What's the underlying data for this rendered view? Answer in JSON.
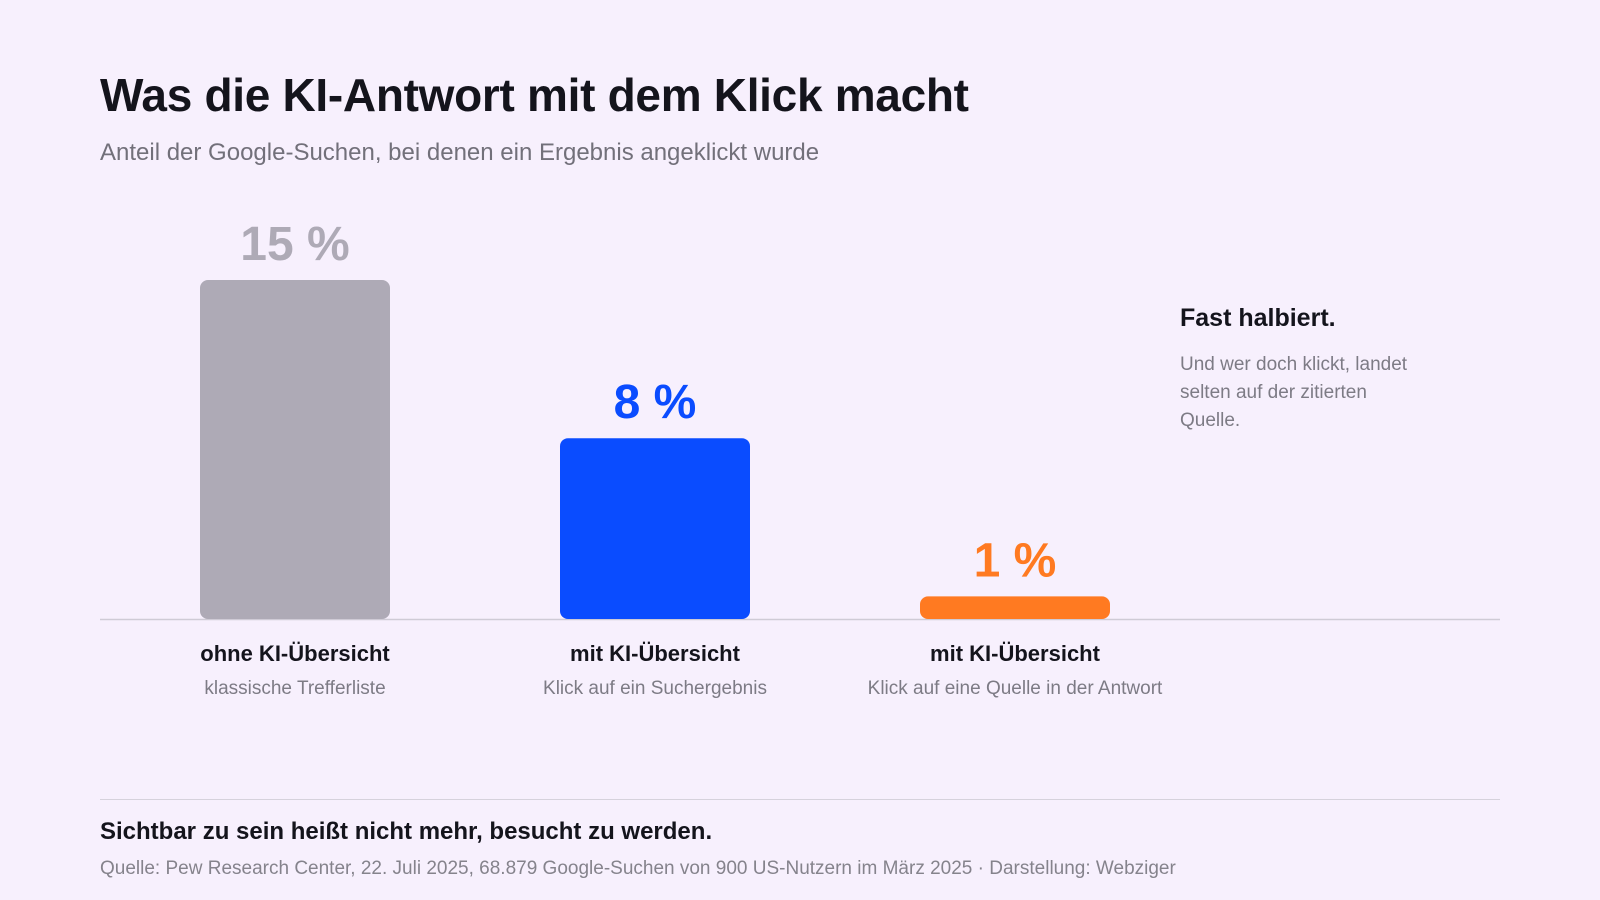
{
  "chart_data": {
    "type": "bar",
    "title": "Was die KI-Antwort mit dem Klick macht",
    "subtitle": "Anteil der Google-Suchen, bei denen ein Ergebnis angeklickt wurde",
    "categories": [
      "ohne KI-Übersicht",
      "mit KI-Übersicht",
      "mit KI-Übersicht"
    ],
    "category_sublabels": [
      "klassische Trefferliste",
      "Klick auf ein Suchergebnis",
      "Klick auf eine Quelle in der Antwort"
    ],
    "values": [
      15,
      8,
      1
    ],
    "value_labels": [
      "15 %",
      "8 %",
      "1 %"
    ],
    "colors": [
      "#aeaab6",
      "#0a4cff",
      "#ff7a21"
    ],
    "ylim": [
      0,
      15
    ],
    "grid": false,
    "unit": "%"
  },
  "annotation": {
    "title": "Fast halbiert.",
    "text": "Und wer doch klickt, landet selten auf der zitierten Quelle."
  },
  "footer": {
    "takeaway": "Sichtbar zu sein heißt nicht mehr, besucht zu werden.",
    "source": "Quelle: Pew Research Center, 22. Juli 2025, 68.879 Google-Suchen von 900 US-Nutzern im März 2025 · Darstellung: Webziger"
  }
}
